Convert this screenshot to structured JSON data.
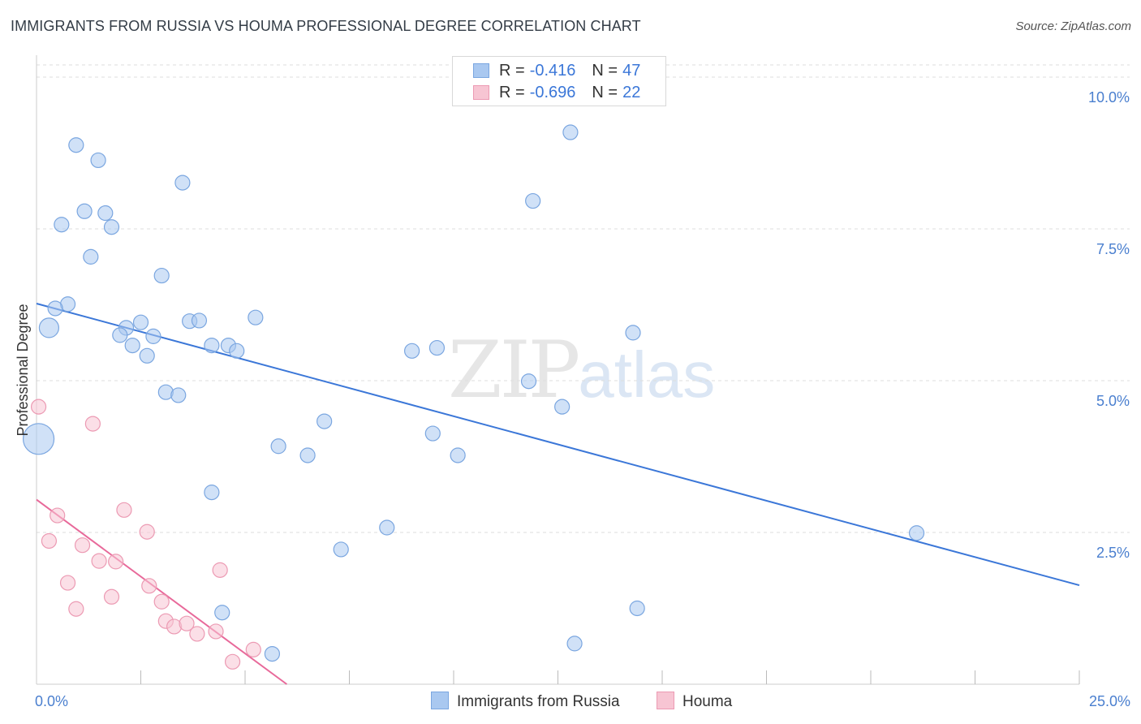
{
  "header": {
    "title": "IMMIGRANTS FROM RUSSIA VS HOUMA PROFESSIONAL DEGREE CORRELATION CHART",
    "source": "Source: ZipAtlas.com"
  },
  "watermark": {
    "zip": "ZIP",
    "atlas": "atlas"
  },
  "legend": {
    "rows": [
      {
        "r_label": "R =",
        "r_value": "-0.416",
        "n_label": "N =",
        "n_value": "47",
        "color": "#a9c8f0",
        "border": "#7aa6e0"
      },
      {
        "r_label": "R =",
        "r_value": "-0.696",
        "n_label": "N =",
        "n_value": "22",
        "color": "#f7c5d3",
        "border": "#ec9ab3"
      }
    ]
  },
  "bottom_legend": {
    "series1": "Immigrants from Russia",
    "series2": "Houma"
  },
  "colors": {
    "blue_fill": "#a9c8f0",
    "blue_stroke": "#7aa6e0",
    "blue_line": "#3b77d8",
    "pink_fill": "#f7c5d3",
    "pink_stroke": "#ec9ab3",
    "pink_line": "#e8699a",
    "grid": "#dddddd",
    "tick_text": "#4a7fcf"
  },
  "chart_data": {
    "type": "scatter",
    "title": "IMMIGRANTS FROM RUSSIA VS HOUMA PROFESSIONAL DEGREE CORRELATION CHART",
    "xlabel": "",
    "ylabel": "Professional Degree",
    "xlim": [
      0,
      25
    ],
    "ylim": [
      0,
      10.2
    ],
    "x_tick_labels": [
      {
        "value": 0,
        "label": "0.0%"
      },
      {
        "value": 25,
        "label": "25.0%"
      }
    ],
    "y_tick_labels": [
      {
        "value": 2.5,
        "label": "2.5%"
      },
      {
        "value": 5.0,
        "label": "5.0%"
      },
      {
        "value": 7.5,
        "label": "7.5%"
      },
      {
        "value": 10.0,
        "label": "10.0%"
      }
    ],
    "x_minor_ticks": [
      2.5,
      5.0,
      7.5,
      10.0,
      12.5,
      15.0,
      17.5,
      20.0,
      22.5,
      25.0
    ],
    "series": [
      {
        "name": "Immigrants from Russia",
        "color": "#a9c8f0",
        "points": [
          [
            0.95,
            8.88
          ],
          [
            1.48,
            8.63
          ],
          [
            3.5,
            8.26
          ],
          [
            1.15,
            7.79
          ],
          [
            1.65,
            7.76
          ],
          [
            0.6,
            7.57
          ],
          [
            1.8,
            7.53
          ],
          [
            1.3,
            7.04
          ],
          [
            3.0,
            6.73
          ],
          [
            0.75,
            6.26
          ],
          [
            0.45,
            6.19
          ],
          [
            0.3,
            5.87,
            "large"
          ],
          [
            2.5,
            5.96
          ],
          [
            3.67,
            5.98
          ],
          [
            3.9,
            5.99
          ],
          [
            5.25,
            6.04
          ],
          [
            2.15,
            5.87
          ],
          [
            2.0,
            5.75
          ],
          [
            2.8,
            5.73
          ],
          [
            2.3,
            5.58
          ],
          [
            4.2,
            5.58
          ],
          [
            4.6,
            5.58
          ],
          [
            4.8,
            5.49
          ],
          [
            2.65,
            5.41
          ],
          [
            14.3,
            5.79
          ],
          [
            9.0,
            5.49
          ],
          [
            9.6,
            5.54
          ],
          [
            3.1,
            4.81
          ],
          [
            3.4,
            4.76
          ],
          [
            11.8,
            4.99
          ],
          [
            12.6,
            4.57
          ],
          [
            6.9,
            4.33
          ],
          [
            9.5,
            4.13
          ],
          [
            0.05,
            4.04,
            "xlarge"
          ],
          [
            5.8,
            3.92
          ],
          [
            6.5,
            3.77
          ],
          [
            10.1,
            3.77
          ],
          [
            4.2,
            3.16
          ],
          [
            8.4,
            2.58
          ],
          [
            7.3,
            2.22
          ],
          [
            21.1,
            2.49
          ],
          [
            4.45,
            1.18
          ],
          [
            14.4,
            1.25
          ],
          [
            12.9,
            0.67
          ],
          [
            5.65,
            0.5
          ],
          [
            11.9,
            7.96
          ],
          [
            12.8,
            9.09
          ]
        ],
        "trend": {
          "x": [
            0,
            25
          ],
          "y": [
            6.27,
            1.63
          ]
        }
      },
      {
        "name": "Houma",
        "color": "#f7c5d3",
        "points": [
          [
            0.05,
            4.57
          ],
          [
            1.35,
            4.29
          ],
          [
            0.5,
            2.78
          ],
          [
            2.1,
            2.87
          ],
          [
            2.65,
            2.51
          ],
          [
            0.3,
            2.36
          ],
          [
            1.1,
            2.29
          ],
          [
            1.5,
            2.03
          ],
          [
            1.9,
            2.02
          ],
          [
            4.4,
            1.88
          ],
          [
            0.75,
            1.67
          ],
          [
            2.7,
            1.62
          ],
          [
            1.8,
            1.44
          ],
          [
            3.0,
            1.36
          ],
          [
            0.95,
            1.24
          ],
          [
            3.1,
            1.04
          ],
          [
            3.3,
            0.95
          ],
          [
            3.6,
            1.0
          ],
          [
            3.85,
            0.83
          ],
          [
            4.3,
            0.87
          ],
          [
            5.2,
            0.57
          ],
          [
            4.7,
            0.37
          ]
        ],
        "trend": {
          "x": [
            0,
            6.0
          ],
          "y": [
            3.04,
            0.0
          ]
        }
      }
    ]
  }
}
